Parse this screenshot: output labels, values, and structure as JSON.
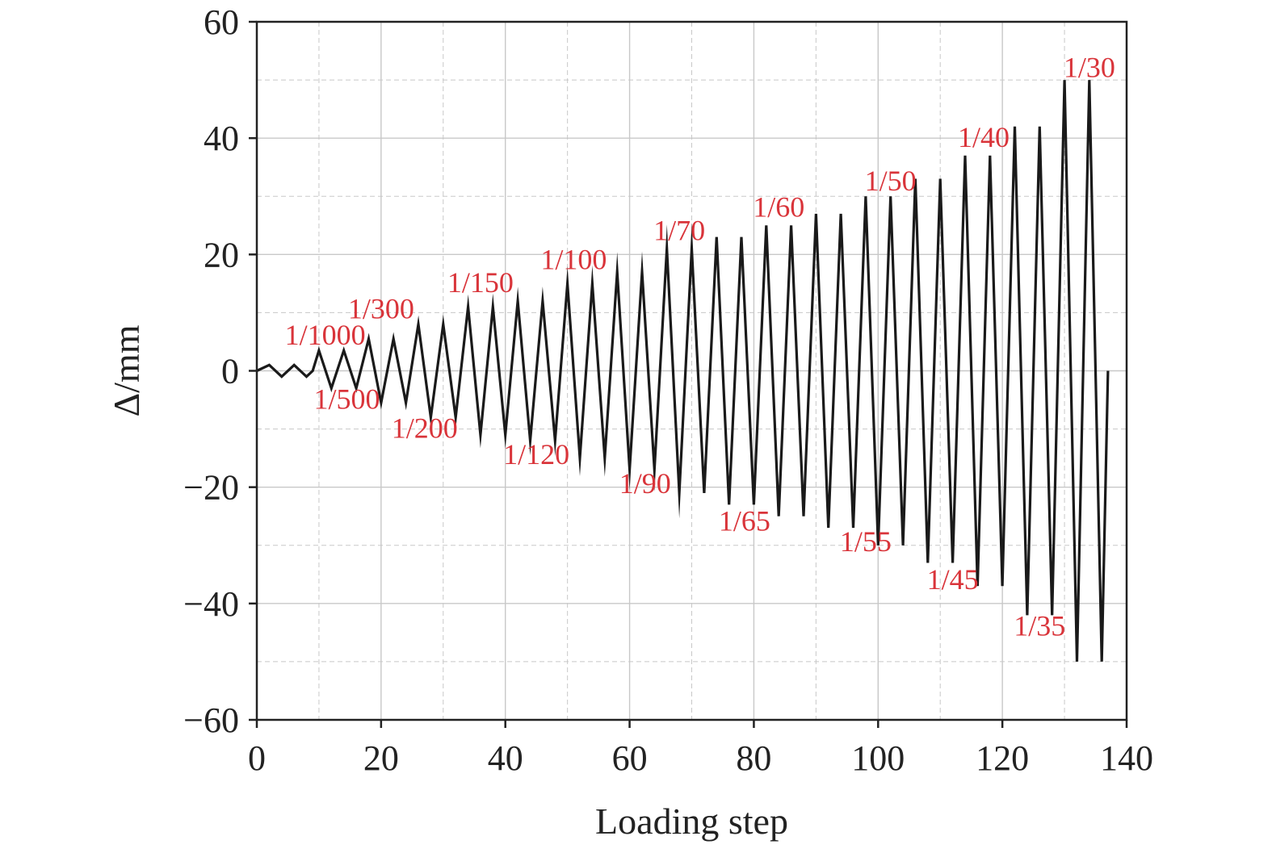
{
  "chart_data": {
    "type": "line",
    "title": "",
    "xlabel": "Loading step",
    "ylabel": "Δ/mm",
    "xlim": [
      0,
      140
    ],
    "ylim": [
      -60,
      60
    ],
    "x_ticks": [
      0,
      20,
      40,
      60,
      80,
      100,
      120,
      140
    ],
    "y_ticks": [
      60,
      40,
      20,
      0,
      -20,
      -40,
      -60
    ],
    "x_tick_labels": [
      "0",
      "20",
      "40",
      "60",
      "80",
      "100",
      "120",
      "140"
    ],
    "y_tick_labels": [
      "60",
      "40",
      "20",
      "0",
      "−20",
      "−40",
      "−60"
    ],
    "grid": true,
    "grid_style": "dashed light gray, major and minor",
    "colors": {
      "series": "#1a1a1a",
      "annotation": "#d9343a",
      "grid": "#c8c8c8",
      "axes": "#222222"
    },
    "series": [
      {
        "points": [
          [
            0,
            0
          ],
          [
            2,
            1
          ],
          [
            4,
            -1
          ],
          [
            6,
            1
          ],
          [
            8,
            -1
          ],
          [
            9,
            0
          ],
          [
            10,
            3.5
          ],
          [
            12,
            -3
          ],
          [
            14,
            3.5
          ],
          [
            16,
            -3
          ],
          [
            18,
            5.5
          ],
          [
            20,
            -5.5
          ],
          [
            22,
            5.5
          ],
          [
            24,
            -5.5
          ],
          [
            26,
            8
          ],
          [
            28,
            -8
          ],
          [
            30,
            8
          ],
          [
            32,
            -8
          ],
          [
            34,
            11
          ],
          [
            36,
            -11
          ],
          [
            38,
            11
          ],
          [
            40,
            -11
          ],
          [
            42,
            12
          ],
          [
            44,
            -12
          ],
          [
            46,
            12
          ],
          [
            48,
            -12
          ],
          [
            50,
            15
          ],
          [
            52,
            -15
          ],
          [
            54,
            15
          ],
          [
            56,
            -15
          ],
          [
            58,
            17
          ],
          [
            60,
            -17
          ],
          [
            62,
            17
          ],
          [
            64,
            -17
          ],
          [
            66,
            21
          ],
          [
            68,
            -21
          ],
          [
            70,
            21
          ],
          [
            72,
            -21
          ],
          [
            74,
            23
          ],
          [
            76,
            -23
          ],
          [
            78,
            23
          ],
          [
            80,
            -23
          ],
          [
            82,
            25
          ],
          [
            84,
            -25
          ],
          [
            86,
            25
          ],
          [
            88,
            -25
          ],
          [
            90,
            27
          ],
          [
            92,
            -27
          ],
          [
            94,
            27
          ],
          [
            96,
            -27
          ],
          [
            98,
            30
          ],
          [
            100,
            -30
          ],
          [
            102,
            30
          ],
          [
            104,
            -30
          ],
          [
            106,
            33
          ],
          [
            108,
            -33
          ],
          [
            110,
            33
          ],
          [
            112,
            -33
          ],
          [
            114,
            37
          ],
          [
            116,
            -37
          ],
          [
            118,
            37
          ],
          [
            120,
            -37
          ],
          [
            122,
            42
          ],
          [
            124,
            -42
          ],
          [
            126,
            42
          ],
          [
            128,
            -42
          ],
          [
            130,
            50
          ],
          [
            132,
            -50
          ],
          [
            134,
            50
          ],
          [
            136,
            -50
          ],
          [
            137,
            0
          ]
        ]
      }
    ],
    "annotations": [
      {
        "text": "1/1000",
        "x": 11,
        "y": 4.5
      },
      {
        "text": "1/500",
        "x": 14.5,
        "y": -6.5
      },
      {
        "text": "1/300",
        "x": 20,
        "y": 9
      },
      {
        "text": "1/200",
        "x": 27,
        "y": -11.5
      },
      {
        "text": "1/150",
        "x": 36,
        "y": 13.5
      },
      {
        "text": "1/120",
        "x": 45,
        "y": -16
      },
      {
        "text": "1/100",
        "x": 51,
        "y": 17.5
      },
      {
        "text": "1/90",
        "x": 62.5,
        "y": -21
      },
      {
        "text": "1/70",
        "x": 68,
        "y": 22.5
      },
      {
        "text": "1/65",
        "x": 78.5,
        "y": -27.5
      },
      {
        "text": "1/60",
        "x": 84,
        "y": 26.5
      },
      {
        "text": "1/55",
        "x": 98,
        "y": -31
      },
      {
        "text": "1/50",
        "x": 102,
        "y": 31
      },
      {
        "text": "1/45",
        "x": 112,
        "y": -37.5
      },
      {
        "text": "1/40",
        "x": 117,
        "y": 38.5
      },
      {
        "text": "1/35",
        "x": 126,
        "y": -45.5
      },
      {
        "text": "1/30",
        "x": 134,
        "y": 50.5
      }
    ]
  }
}
